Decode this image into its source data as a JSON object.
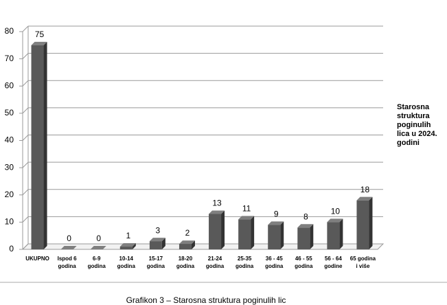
{
  "chart_data": {
    "type": "bar3d",
    "categories": [
      [
        "UKUPNO"
      ],
      [
        "Ispod 6",
        "godina"
      ],
      [
        "6-9",
        "godina"
      ],
      [
        "10-14",
        "godina"
      ],
      [
        "15-17",
        "godina"
      ],
      [
        "18-20",
        "godina"
      ],
      [
        "21-24",
        "godina"
      ],
      [
        "25-35",
        "godina"
      ],
      [
        "36 - 45",
        "godina"
      ],
      [
        "46 - 55",
        "godina"
      ],
      [
        "56 - 64",
        "godine"
      ],
      [
        "65 godina",
        "i više"
      ]
    ],
    "series": [
      {
        "name": "Starosna struktura poginulih lica u 2024. godini",
        "color": "#595959",
        "values": [
          75,
          0,
          0,
          1,
          3,
          2,
          13,
          11,
          9,
          8,
          10,
          18
        ]
      }
    ],
    "ylim": [
      0,
      80
    ],
    "yticks": [
      0,
      10,
      20,
      30,
      40,
      50,
      60,
      70,
      80
    ],
    "grid": true,
    "legend": "right"
  },
  "caption": "Grafikon 3 – Starosna struktura poginulih lic"
}
